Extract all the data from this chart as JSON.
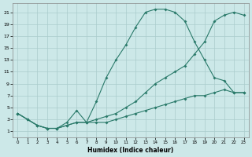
{
  "background_color": "#cce8e8",
  "grid_color": "#aacccc",
  "line_color": "#2a7a6a",
  "xlabel": "Humidex (Indice chaleur)",
  "xlim": [
    -0.5,
    23.5
  ],
  "ylim": [
    0,
    22.5
  ],
  "yticks": [
    1,
    3,
    5,
    7,
    9,
    11,
    13,
    15,
    17,
    19,
    21
  ],
  "xticks": [
    0,
    1,
    2,
    3,
    4,
    5,
    6,
    7,
    8,
    9,
    10,
    11,
    12,
    13,
    14,
    15,
    16,
    17,
    18,
    19,
    20,
    21,
    22,
    23
  ],
  "line_bell_x": [
    0,
    1,
    2,
    3,
    4,
    5,
    6,
    7,
    8,
    9,
    10,
    11,
    12,
    13,
    14,
    15,
    16,
    17,
    18,
    19,
    20,
    21,
    22,
    23
  ],
  "line_bell_y": [
    4,
    3,
    2,
    1.5,
    1.5,
    2.5,
    4.5,
    2.5,
    6,
    10,
    13,
    15.5,
    18.5,
    21,
    21.5,
    21.5,
    21,
    19.5,
    16,
    13,
    10,
    9.5,
    7.5,
    7.5
  ],
  "line_upper_x": [
    0,
    1,
    2,
    3,
    4,
    5,
    6,
    7,
    8,
    9,
    10,
    11,
    12,
    13,
    14,
    15,
    16,
    17,
    18,
    19,
    20,
    21,
    22,
    23
  ],
  "line_upper_y": [
    4,
    3,
    2,
    1.5,
    1.5,
    2,
    2.5,
    2.5,
    3,
    3.5,
    4,
    5,
    6,
    7.5,
    9,
    10,
    11,
    12,
    14,
    16,
    19.5,
    20.5,
    21,
    20.5
  ],
  "line_lower_x": [
    0,
    1,
    2,
    3,
    4,
    5,
    6,
    7,
    8,
    9,
    10,
    11,
    12,
    13,
    14,
    15,
    16,
    17,
    18,
    19,
    20,
    21,
    22,
    23
  ],
  "line_lower_y": [
    4,
    3,
    2,
    1.5,
    1.5,
    2,
    2.5,
    2.5,
    2.5,
    2.5,
    3,
    3.5,
    4,
    4.5,
    5,
    5.5,
    6,
    6.5,
    7,
    7,
    7.5,
    8,
    7.5,
    7.5
  ]
}
